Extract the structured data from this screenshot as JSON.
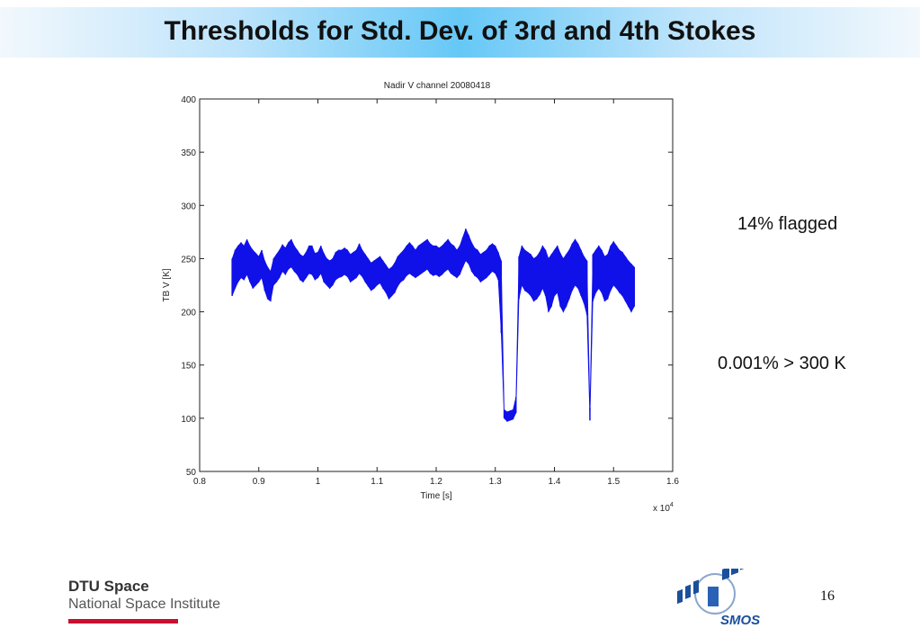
{
  "slide": {
    "title": "Thresholds for Std. Dev. of 3rd and 4th Stokes",
    "notes": [
      "14% flagged",
      "0.001% > 300 K"
    ],
    "page_number": "16"
  },
  "footer": {
    "org_name": "DTU Space",
    "org_subtitle": "National Space Institute",
    "logo_text": "SMOS",
    "accent_color": "#c8102e"
  },
  "chart_data": {
    "type": "scatter",
    "title": "Nadir V channel 20080418",
    "xlabel": "Time [s]",
    "ylabel": "TB V [K]",
    "x_multiplier_label": "x 10",
    "x_multiplier_exponent": "4",
    "xlim": [
      0.8,
      1.6
    ],
    "ylim": [
      50,
      400
    ],
    "x_ticks": [
      0.8,
      0.9,
      1,
      1.1,
      1.2,
      1.3,
      1.4,
      1.5,
      1.6
    ],
    "x_tick_labels": [
      "0.8",
      "0.9",
      "1",
      "1.1",
      "1.2",
      "1.3",
      "1.4",
      "1.5",
      "1.6"
    ],
    "y_ticks": [
      50,
      100,
      150,
      200,
      250,
      300,
      350,
      400
    ],
    "y_tick_labels": [
      "50",
      "100",
      "150",
      "200",
      "250",
      "300",
      "350",
      "400"
    ],
    "color": "#1010e8",
    "series": [
      {
        "x": [
          0.855,
          0.86,
          0.865,
          0.87,
          0.875,
          0.88,
          0.885,
          0.89,
          0.895,
          0.9,
          0.905,
          0.91,
          0.915,
          0.92,
          0.925,
          0.93,
          0.935,
          0.94,
          0.945,
          0.95,
          0.955,
          0.96,
          0.965,
          0.97,
          0.975,
          0.98,
          0.985,
          0.99,
          0.995,
          1.0,
          1.005,
          1.01,
          1.015,
          1.02,
          1.025,
          1.03,
          1.035,
          1.04,
          1.045,
          1.05,
          1.055,
          1.06,
          1.065,
          1.07,
          1.075,
          1.08,
          1.085,
          1.09,
          1.095,
          1.1,
          1.105,
          1.11,
          1.115,
          1.12,
          1.125,
          1.13,
          1.135,
          1.14,
          1.145,
          1.15,
          1.155,
          1.16,
          1.165,
          1.17,
          1.175,
          1.18,
          1.185,
          1.19,
          1.195,
          1.2,
          1.205,
          1.21,
          1.215,
          1.22,
          1.225,
          1.23,
          1.235,
          1.24,
          1.245,
          1.25,
          1.255,
          1.26,
          1.265,
          1.27,
          1.275,
          1.28,
          1.285,
          1.29,
          1.295,
          1.3,
          1.305,
          1.31,
          1.315,
          1.32,
          1.325,
          1.33,
          1.335,
          1.34,
          1.345,
          1.35,
          1.355,
          1.36,
          1.365,
          1.37,
          1.375,
          1.38,
          1.385,
          1.39,
          1.395,
          1.4,
          1.405,
          1.41,
          1.415,
          1.42,
          1.425,
          1.43,
          1.435,
          1.44,
          1.445,
          1.45,
          1.455,
          1.46,
          1.465,
          1.47,
          1.475,
          1.48,
          1.485,
          1.49,
          1.495,
          1.5,
          1.505,
          1.51,
          1.515,
          1.52,
          1.525,
          1.53,
          1.535
        ],
        "y_low": [
          215,
          222,
          228,
          232,
          230,
          235,
          228,
          222,
          225,
          228,
          232,
          220,
          212,
          210,
          225,
          228,
          232,
          238,
          235,
          240,
          242,
          238,
          235,
          230,
          228,
          232,
          236,
          235,
          230,
          232,
          236,
          228,
          225,
          222,
          225,
          230,
          232,
          233,
          235,
          233,
          228,
          230,
          232,
          236,
          233,
          228,
          224,
          220,
          222,
          225,
          227,
          222,
          218,
          212,
          215,
          218,
          224,
          228,
          230,
          234,
          236,
          234,
          232,
          234,
          236,
          238,
          240,
          236,
          234,
          235,
          233,
          235,
          238,
          240,
          236,
          234,
          232,
          235,
          242,
          248,
          245,
          238,
          234,
          232,
          228,
          230,
          232,
          235,
          238,
          236,
          230,
          180,
          100,
          97,
          98,
          99,
          105,
          212,
          225,
          220,
          218,
          215,
          210,
          212,
          216,
          222,
          215,
          200,
          205,
          215,
          218,
          205,
          200,
          205,
          212,
          220,
          225,
          222,
          215,
          208,
          197,
          98,
          210,
          218,
          222,
          218,
          210,
          212,
          220,
          225,
          222,
          218,
          215,
          210,
          205,
          200,
          205
        ],
        "y_high": [
          250,
          258,
          262,
          265,
          262,
          268,
          262,
          258,
          255,
          252,
          258,
          248,
          242,
          238,
          250,
          254,
          258,
          263,
          260,
          265,
          268,
          262,
          258,
          254,
          252,
          256,
          262,
          262,
          255,
          256,
          262,
          255,
          250,
          248,
          250,
          256,
          258,
          258,
          260,
          258,
          254,
          256,
          258,
          264,
          258,
          254,
          250,
          246,
          248,
          250,
          252,
          248,
          244,
          240,
          242,
          246,
          252,
          255,
          258,
          262,
          265,
          262,
          258,
          262,
          264,
          266,
          268,
          264,
          262,
          262,
          260,
          262,
          265,
          268,
          264,
          262,
          258,
          262,
          270,
          278,
          272,
          265,
          260,
          258,
          254,
          256,
          258,
          262,
          264,
          262,
          256,
          248,
          108,
          106,
          107,
          108,
          120,
          252,
          262,
          258,
          256,
          254,
          250,
          252,
          256,
          262,
          258,
          250,
          254,
          258,
          262,
          255,
          250,
          254,
          258,
          264,
          268,
          264,
          258,
          252,
          248,
          110,
          254,
          258,
          262,
          258,
          252,
          254,
          262,
          266,
          262,
          258,
          256,
          252,
          248,
          245,
          242
        ]
      }
    ]
  }
}
